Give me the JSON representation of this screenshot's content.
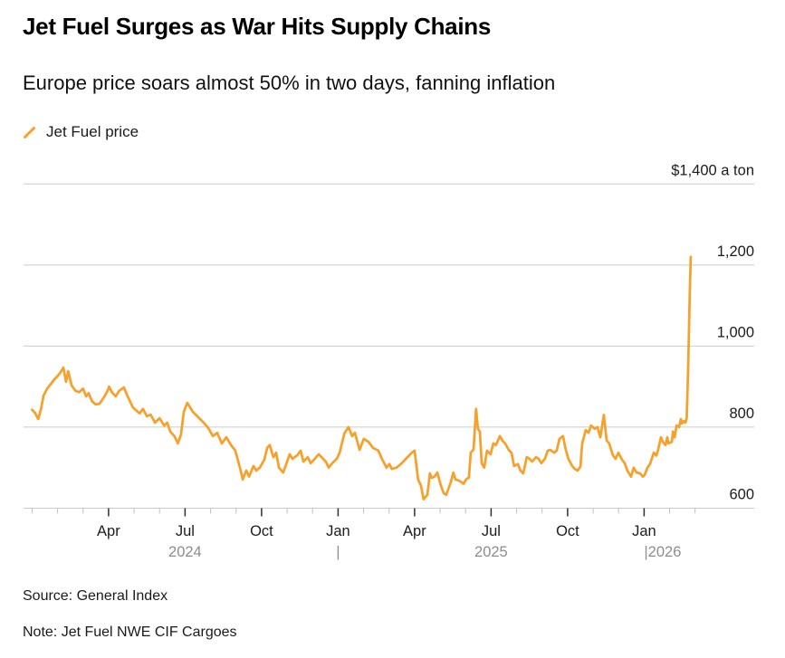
{
  "header": {
    "title": "Jet Fuel Surges as War Hits Supply Chains",
    "subtitle": "Europe price soars almost 50% in two days, fanning inflation"
  },
  "legend": {
    "label": "Jet Fuel price"
  },
  "footer": {
    "source": "Source: General Index",
    "note": "Note: Jet Fuel NWE CIF Cargoes"
  },
  "chart_data": {
    "type": "line",
    "title": "Jet Fuel Surges as War Hits Supply Chains",
    "subtitle": "Europe price soars almost 50% in two days, fanning inflation",
    "unit_label": "$ a ton",
    "grid": true,
    "legend_position": "top-left",
    "x_unit": "months since 2024-01-01",
    "x_range": [
      0,
      26.3
    ],
    "y_range": [
      600,
      1400
    ],
    "y_ticks": [
      {
        "value": 600,
        "label": "600"
      },
      {
        "value": 800,
        "label": "800"
      },
      {
        "value": 1000,
        "label": "1,000"
      },
      {
        "value": 1200,
        "label": "1,200"
      },
      {
        "value": 1400,
        "label": "$1,400 a ton"
      }
    ],
    "x_major_ticks": [
      {
        "m": 3,
        "label": "Apr"
      },
      {
        "m": 6,
        "label": "Jul"
      },
      {
        "m": 9,
        "label": "Oct"
      },
      {
        "m": 12,
        "label": "Jan"
      },
      {
        "m": 15,
        "label": "Apr"
      },
      {
        "m": 18,
        "label": "Jul"
      },
      {
        "m": 21,
        "label": "Oct"
      },
      {
        "m": 24,
        "label": "Jan"
      }
    ],
    "x_minor_tick_start": 0,
    "x_minor_tick_end": 26,
    "year_labels": [
      {
        "m": 6,
        "label": "2024",
        "anchor": "middle"
      },
      {
        "m": 12,
        "label": "|",
        "anchor": "middle"
      },
      {
        "m": 18,
        "label": "2025",
        "anchor": "middle"
      },
      {
        "m": 24,
        "label": "|2026",
        "anchor": "start"
      }
    ],
    "colors": {
      "line": "#F5A12B",
      "grid": "#CBCBCB",
      "tick_minor": "#C2C2C2",
      "tick_major": "#2E2E2E",
      "year_label": "#8D8D8D",
      "text": "#1A1A1A"
    },
    "series": [
      {
        "name": "Jet Fuel price",
        "color": "#F5A12B",
        "points": [
          [
            0,
            843
          ],
          [
            0.12,
            835
          ],
          [
            0.24,
            820
          ],
          [
            0.35,
            845
          ],
          [
            0.45,
            878
          ],
          [
            0.6,
            896
          ],
          [
            0.72,
            905
          ],
          [
            0.85,
            916
          ],
          [
            1.0,
            926
          ],
          [
            1.1,
            934
          ],
          [
            1.23,
            947
          ],
          [
            1.33,
            912
          ],
          [
            1.42,
            938
          ],
          [
            1.55,
            903
          ],
          [
            1.7,
            890
          ],
          [
            1.85,
            886
          ],
          [
            2.0,
            895
          ],
          [
            2.12,
            876
          ],
          [
            2.22,
            884
          ],
          [
            2.35,
            864
          ],
          [
            2.5,
            856
          ],
          [
            2.65,
            858
          ],
          [
            2.8,
            872
          ],
          [
            2.95,
            888
          ],
          [
            3.02,
            900
          ],
          [
            3.12,
            887
          ],
          [
            3.28,
            876
          ],
          [
            3.42,
            890
          ],
          [
            3.6,
            898
          ],
          [
            3.75,
            876
          ],
          [
            3.95,
            849
          ],
          [
            4.07,
            842
          ],
          [
            4.22,
            834
          ],
          [
            4.35,
            845
          ],
          [
            4.5,
            827
          ],
          [
            4.65,
            831
          ],
          [
            4.82,
            811
          ],
          [
            5.0,
            822
          ],
          [
            5.18,
            804
          ],
          [
            5.3,
            811
          ],
          [
            5.42,
            789
          ],
          [
            5.58,
            778
          ],
          [
            5.72,
            760
          ],
          [
            5.84,
            782
          ],
          [
            5.95,
            838
          ],
          [
            6.09,
            860
          ],
          [
            6.3,
            838
          ],
          [
            6.48,
            827
          ],
          [
            6.73,
            811
          ],
          [
            6.91,
            798
          ],
          [
            7.09,
            778
          ],
          [
            7.26,
            786
          ],
          [
            7.44,
            760
          ],
          [
            7.62,
            775
          ],
          [
            7.8,
            756
          ],
          [
            7.97,
            742
          ],
          [
            8.15,
            700
          ],
          [
            8.26,
            671
          ],
          [
            8.4,
            693
          ],
          [
            8.51,
            678
          ],
          [
            8.68,
            704
          ],
          [
            8.79,
            693
          ],
          [
            8.93,
            700
          ],
          [
            9.11,
            720
          ],
          [
            9.22,
            749
          ],
          [
            9.32,
            756
          ],
          [
            9.46,
            726
          ],
          [
            9.57,
            737
          ],
          [
            9.68,
            700
          ],
          [
            9.85,
            688
          ],
          [
            10.0,
            715
          ],
          [
            10.1,
            733
          ],
          [
            10.21,
            722
          ],
          [
            10.39,
            730
          ],
          [
            10.53,
            742
          ],
          [
            10.64,
            715
          ],
          [
            10.81,
            726
          ],
          [
            10.92,
            711
          ],
          [
            11.06,
            720
          ],
          [
            11.24,
            733
          ],
          [
            11.35,
            726
          ],
          [
            11.52,
            715
          ],
          [
            11.63,
            700
          ],
          [
            11.77,
            711
          ],
          [
            11.95,
            722
          ],
          [
            12.06,
            737
          ],
          [
            12.25,
            785
          ],
          [
            12.41,
            800
          ],
          [
            12.55,
            778
          ],
          [
            12.66,
            786
          ],
          [
            12.84,
            744
          ],
          [
            13.01,
            771
          ],
          [
            13.19,
            764
          ],
          [
            13.37,
            749
          ],
          [
            13.58,
            742
          ],
          [
            13.72,
            722
          ],
          [
            13.9,
            700
          ],
          [
            14.01,
            709
          ],
          [
            14.11,
            697
          ],
          [
            14.29,
            700
          ],
          [
            14.45,
            708
          ],
          [
            14.6,
            718
          ],
          [
            14.75,
            728
          ],
          [
            14.89,
            737
          ],
          [
            15.0,
            742
          ],
          [
            15.14,
            671
          ],
          [
            15.25,
            656
          ],
          [
            15.35,
            622
          ],
          [
            15.5,
            633
          ],
          [
            15.6,
            686
          ],
          [
            15.67,
            675
          ],
          [
            15.78,
            678
          ],
          [
            15.89,
            688
          ],
          [
            16.03,
            656
          ],
          [
            16.14,
            637
          ],
          [
            16.24,
            633
          ],
          [
            16.42,
            664
          ],
          [
            16.52,
            688
          ],
          [
            16.6,
            671
          ],
          [
            16.78,
            667
          ],
          [
            16.92,
            660
          ],
          [
            17.02,
            671
          ],
          [
            17.13,
            676
          ],
          [
            17.2,
            737
          ],
          [
            17.31,
            745
          ],
          [
            17.41,
            845
          ],
          [
            17.48,
            796
          ],
          [
            17.56,
            789
          ],
          [
            17.63,
            711
          ],
          [
            17.73,
            700
          ],
          [
            17.84,
            742
          ],
          [
            17.98,
            733
          ],
          [
            18.09,
            760
          ],
          [
            18.19,
            756
          ],
          [
            18.34,
            778
          ],
          [
            18.44,
            767
          ],
          [
            18.55,
            760
          ],
          [
            18.69,
            744
          ],
          [
            18.8,
            737
          ],
          [
            18.9,
            704
          ],
          [
            19.05,
            709
          ],
          [
            19.15,
            693
          ],
          [
            19.26,
            686
          ],
          [
            19.4,
            726
          ],
          [
            19.51,
            722
          ],
          [
            19.61,
            715
          ],
          [
            19.76,
            726
          ],
          [
            19.86,
            722
          ],
          [
            19.97,
            711
          ],
          [
            20.11,
            722
          ],
          [
            20.22,
            742
          ],
          [
            20.32,
            744
          ],
          [
            20.47,
            737
          ],
          [
            20.57,
            742
          ],
          [
            20.68,
            771
          ],
          [
            20.82,
            778
          ],
          [
            20.93,
            744
          ],
          [
            21.03,
            722
          ],
          [
            21.18,
            704
          ],
          [
            21.28,
            697
          ],
          [
            21.39,
            693
          ],
          [
            21.5,
            702
          ],
          [
            21.57,
            760
          ],
          [
            21.65,
            778
          ],
          [
            21.71,
            793
          ],
          [
            21.82,
            786
          ],
          [
            21.92,
            804
          ],
          [
            22.06,
            796
          ],
          [
            22.17,
            800
          ],
          [
            22.28,
            775
          ],
          [
            22.42,
            830
          ],
          [
            22.53,
            767
          ],
          [
            22.63,
            760
          ],
          [
            22.78,
            730
          ],
          [
            22.88,
            722
          ],
          [
            22.99,
            737
          ],
          [
            23.13,
            720
          ],
          [
            23.24,
            711
          ],
          [
            23.34,
            693
          ],
          [
            23.49,
            678
          ],
          [
            23.59,
            700
          ],
          [
            23.7,
            688
          ],
          [
            23.84,
            686
          ],
          [
            23.95,
            678
          ],
          [
            24.02,
            682
          ],
          [
            24.13,
            700
          ],
          [
            24.23,
            709
          ],
          [
            24.38,
            737
          ],
          [
            24.48,
            730
          ],
          [
            24.55,
            744
          ],
          [
            24.66,
            775
          ],
          [
            24.73,
            764
          ],
          [
            24.84,
            756
          ],
          [
            24.91,
            775
          ],
          [
            24.95,
            760
          ],
          [
            25.09,
            764
          ],
          [
            25.13,
            789
          ],
          [
            25.2,
            775
          ],
          [
            25.27,
            804
          ],
          [
            25.37,
            800
          ],
          [
            25.44,
            820
          ],
          [
            25.48,
            809
          ],
          [
            25.55,
            815
          ],
          [
            25.62,
            811
          ],
          [
            25.67,
            822
          ],
          [
            25.73,
            950
          ],
          [
            25.79,
            1130
          ],
          [
            25.83,
            1220
          ]
        ]
      }
    ]
  }
}
